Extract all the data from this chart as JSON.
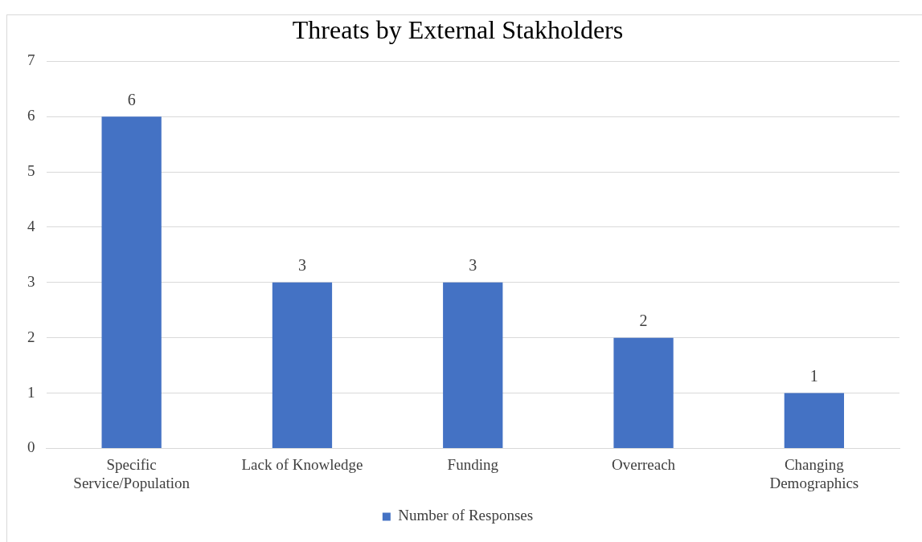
{
  "chart_data": {
    "type": "bar",
    "title": "Threats by External Stakholders",
    "categories": [
      "Specific Service/Population",
      "Lack of Knowledge",
      "Funding",
      "Overreach",
      "Changing Demographics"
    ],
    "series": [
      {
        "name": "Number of Responses",
        "color": "#4472c4",
        "values": [
          6,
          3,
          3,
          2,
          1
        ]
      }
    ],
    "ylim": [
      0,
      7
    ],
    "yticks": [
      0,
      1,
      2,
      3,
      4,
      5,
      6,
      7
    ],
    "grid": "y",
    "legend": "bottom",
    "data_labels": true
  }
}
